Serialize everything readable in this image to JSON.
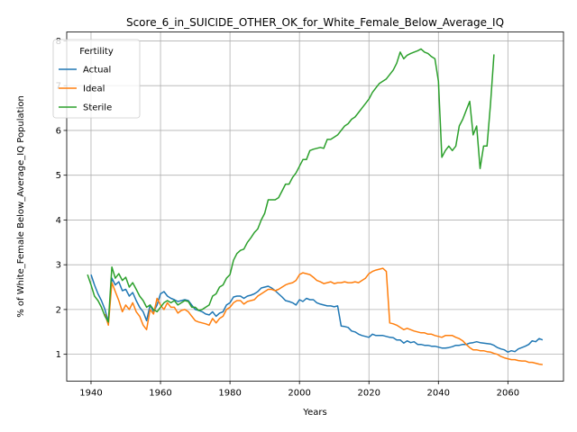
{
  "chart_data": {
    "type": "line",
    "title": "Score_6_in_SUICIDE_OTHER_OK_for_White_Female_Below_Average_IQ",
    "xlabel": "Years",
    "ylabel": "% of White_Female Below_Average_IQ Population",
    "xlim": [
      1933,
      2076
    ],
    "ylim": [
      0.4,
      8.2
    ],
    "xticks": [
      1940,
      1960,
      1980,
      2000,
      2020,
      2040,
      2060
    ],
    "yticks": [
      1,
      2,
      3,
      4,
      5,
      6,
      7,
      8
    ],
    "grid": true,
    "legend": {
      "title": "Fertility",
      "placement": "top-left"
    },
    "series": [
      {
        "name": "Actual",
        "color": "#1f77b4",
        "x": [
          1940,
          1941,
          1942,
          1943,
          1944,
          1945,
          1946,
          1947,
          1948,
          1949,
          1950,
          1951,
          1952,
          1953,
          1954,
          1955,
          1956,
          1957,
          1958,
          1959,
          1960,
          1961,
          1962,
          1963,
          1964,
          1965,
          1966,
          1967,
          1968,
          1969,
          1970,
          1971,
          1972,
          1973,
          1974,
          1975,
          1976,
          1977,
          1978,
          1979,
          1980,
          1981,
          1982,
          1983,
          1984,
          1985,
          1986,
          1987,
          1988,
          1989,
          1990,
          1991,
          1992,
          1993,
          1994,
          1995,
          1996,
          1997,
          1998,
          1999,
          2000,
          2001,
          2002,
          2003,
          2004,
          2005,
          2006,
          2007,
          2008,
          2009,
          2010,
          2011,
          2012,
          2013,
          2014,
          2015,
          2016,
          2017,
          2018,
          2019,
          2020,
          2021,
          2022,
          2023,
          2024,
          2025,
          2026,
          2027,
          2028,
          2029,
          2030,
          2031,
          2032,
          2033,
          2034,
          2035,
          2036,
          2037,
          2038,
          2039,
          2040,
          2041,
          2042,
          2043,
          2044,
          2045,
          2046,
          2047,
          2048,
          2049,
          2050,
          2051,
          2052,
          2053,
          2054,
          2055,
          2056,
          2057,
          2058,
          2059,
          2060,
          2061,
          2062,
          2063,
          2064,
          2065,
          2066,
          2067,
          2068,
          2069,
          2070
        ],
        "values": [
          2.78,
          2.55,
          2.35,
          2.2,
          2.0,
          1.72,
          2.7,
          2.55,
          2.62,
          2.42,
          2.45,
          2.3,
          2.38,
          2.2,
          2.05,
          1.95,
          1.75,
          2.1,
          1.95,
          2.1,
          2.35,
          2.4,
          2.3,
          2.25,
          2.22,
          2.18,
          2.2,
          2.22,
          2.2,
          2.1,
          2.0,
          1.98,
          1.95,
          1.9,
          1.88,
          1.95,
          1.85,
          1.92,
          1.95,
          2.1,
          2.15,
          2.28,
          2.3,
          2.3,
          2.25,
          2.3,
          2.32,
          2.35,
          2.4,
          2.48,
          2.5,
          2.52,
          2.48,
          2.42,
          2.35,
          2.28,
          2.2,
          2.18,
          2.15,
          2.1,
          2.22,
          2.18,
          2.25,
          2.22,
          2.22,
          2.15,
          2.12,
          2.1,
          2.08,
          2.08,
          2.06,
          2.08,
          1.63,
          1.62,
          1.6,
          1.52,
          1.5,
          1.45,
          1.42,
          1.4,
          1.38,
          1.45,
          1.42,
          1.42,
          1.42,
          1.4,
          1.38,
          1.37,
          1.32,
          1.32,
          1.25,
          1.3,
          1.26,
          1.28,
          1.22,
          1.22,
          1.2,
          1.2,
          1.18,
          1.18,
          1.16,
          1.14,
          1.14,
          1.15,
          1.17,
          1.2,
          1.2,
          1.22,
          1.22,
          1.25,
          1.26,
          1.28,
          1.26,
          1.25,
          1.24,
          1.23,
          1.2,
          1.15,
          1.12,
          1.1,
          1.05,
          1.08,
          1.06,
          1.12,
          1.15,
          1.18,
          1.22,
          1.3,
          1.28,
          1.35,
          1.32
        ]
      },
      {
        "name": "Ideal",
        "color": "#ff7f0e",
        "x": [
          1944,
          1945,
          1946,
          1947,
          1948,
          1949,
          1950,
          1951,
          1952,
          1953,
          1954,
          1955,
          1956,
          1957,
          1958,
          1959,
          1960,
          1961,
          1962,
          1963,
          1964,
          1965,
          1966,
          1967,
          1968,
          1969,
          1970,
          1971,
          1972,
          1973,
          1974,
          1975,
          1976,
          1977,
          1978,
          1979,
          1980,
          1981,
          1982,
          1983,
          1984,
          1985,
          1986,
          1987,
          1988,
          1989,
          1990,
          1991,
          1992,
          1993,
          1994,
          1995,
          1996,
          1997,
          1998,
          1999,
          2000,
          2001,
          2002,
          2003,
          2004,
          2005,
          2006,
          2007,
          2008,
          2009,
          2010,
          2011,
          2012,
          2013,
          2014,
          2015,
          2016,
          2017,
          2018,
          2019,
          2020,
          2021,
          2022,
          2023,
          2024,
          2025,
          2026,
          2027,
          2028,
          2029,
          2030,
          2031,
          2032,
          2033,
          2034,
          2035,
          2036,
          2037,
          2038,
          2039,
          2040,
          2041,
          2042,
          2043,
          2044,
          2045,
          2046,
          2047,
          2048,
          2049,
          2050,
          2051,
          2052,
          2053,
          2054,
          2055,
          2056,
          2057,
          2058,
          2059,
          2060,
          2061,
          2062,
          2063,
          2064,
          2065,
          2066,
          2067,
          2068,
          2069,
          2070
        ],
        "values": [
          1.9,
          1.65,
          2.6,
          2.4,
          2.2,
          1.95,
          2.1,
          2.0,
          2.15,
          1.95,
          1.85,
          1.65,
          1.55,
          2.0,
          1.9,
          2.25,
          2.1,
          2.0,
          2.15,
          2.05,
          2.05,
          1.92,
          1.98,
          2.0,
          1.95,
          1.85,
          1.75,
          1.72,
          1.7,
          1.68,
          1.65,
          1.8,
          1.7,
          1.8,
          1.85,
          2.0,
          2.05,
          2.15,
          2.2,
          2.2,
          2.12,
          2.18,
          2.2,
          2.22,
          2.3,
          2.35,
          2.4,
          2.45,
          2.45,
          2.42,
          2.45,
          2.5,
          2.55,
          2.58,
          2.6,
          2.65,
          2.78,
          2.82,
          2.8,
          2.78,
          2.72,
          2.65,
          2.62,
          2.58,
          2.6,
          2.62,
          2.58,
          2.6,
          2.6,
          2.62,
          2.6,
          2.6,
          2.62,
          2.6,
          2.65,
          2.7,
          2.8,
          2.85,
          2.88,
          2.9,
          2.92,
          2.85,
          1.7,
          1.68,
          1.65,
          1.6,
          1.55,
          1.58,
          1.55,
          1.52,
          1.5,
          1.48,
          1.48,
          1.45,
          1.45,
          1.42,
          1.4,
          1.38,
          1.42,
          1.42,
          1.42,
          1.38,
          1.35,
          1.3,
          1.22,
          1.15,
          1.1,
          1.1,
          1.08,
          1.08,
          1.06,
          1.05,
          1.02,
          1.0,
          0.95,
          0.92,
          0.9,
          0.88,
          0.88,
          0.86,
          0.85,
          0.85,
          0.82,
          0.82,
          0.8,
          0.78,
          0.77
        ]
      },
      {
        "name": "Sterile",
        "color": "#2ca02c",
        "x": [
          1939,
          1940,
          1941,
          1942,
          1943,
          1944,
          1945,
          1946,
          1947,
          1948,
          1949,
          1950,
          1951,
          1952,
          1953,
          1954,
          1955,
          1956,
          1957,
          1958,
          1959,
          1960,
          1961,
          1962,
          1963,
          1964,
          1965,
          1966,
          1967,
          1968,
          1969,
          1970,
          1971,
          1972,
          1973,
          1974,
          1975,
          1976,
          1977,
          1978,
          1979,
          1980,
          1981,
          1982,
          1983,
          1984,
          1985,
          1986,
          1987,
          1988,
          1989,
          1990,
          1991,
          1992,
          1993,
          1994,
          1995,
          1996,
          1997,
          1998,
          1999,
          2000,
          2001,
          2002,
          2003,
          2004,
          2005,
          2006,
          2007,
          2008,
          2009,
          2010,
          2011,
          2012,
          2013,
          2014,
          2015,
          2016,
          2017,
          2018,
          2019,
          2020,
          2021,
          2022,
          2023,
          2024,
          2025,
          2026,
          2027,
          2028,
          2029,
          2030,
          2031,
          2032,
          2033,
          2034,
          2035,
          2036,
          2037,
          2038,
          2039,
          2040,
          2041,
          2042,
          2043,
          2044,
          2045,
          2046,
          2047,
          2048,
          2049,
          2050,
          2051,
          2052,
          2053,
          2054,
          2055,
          2056
        ],
        "values": [
          2.78,
          2.55,
          2.3,
          2.2,
          2.05,
          1.85,
          1.72,
          2.95,
          2.7,
          2.8,
          2.65,
          2.72,
          2.5,
          2.6,
          2.45,
          2.3,
          2.2,
          2.05,
          2.1,
          2.0,
          1.95,
          2.05,
          2.15,
          2.2,
          2.15,
          2.2,
          2.1,
          2.15,
          2.2,
          2.18,
          2.05,
          2.05,
          1.98,
          2.0,
          2.05,
          2.1,
          2.3,
          2.35,
          2.5,
          2.55,
          2.7,
          2.78,
          3.1,
          3.25,
          3.32,
          3.35,
          3.5,
          3.6,
          3.72,
          3.8,
          4.0,
          4.15,
          4.45,
          4.45,
          4.45,
          4.5,
          4.65,
          4.8,
          4.8,
          4.95,
          5.05,
          5.2,
          5.35,
          5.35,
          5.55,
          5.58,
          5.6,
          5.62,
          5.6,
          5.8,
          5.8,
          5.85,
          5.9,
          6.0,
          6.1,
          6.15,
          6.25,
          6.3,
          6.4,
          6.5,
          6.6,
          6.7,
          6.85,
          6.95,
          7.05,
          7.1,
          7.15,
          7.25,
          7.35,
          7.5,
          7.75,
          7.6,
          7.68,
          7.72,
          7.75,
          7.78,
          7.82,
          7.75,
          7.72,
          7.65,
          7.6,
          7.1,
          5.4,
          5.55,
          5.65,
          5.55,
          5.65,
          6.1,
          6.25,
          6.45,
          6.65,
          5.9,
          6.1,
          5.15,
          5.65,
          5.65,
          6.6,
          7.7
        ]
      }
    ]
  }
}
